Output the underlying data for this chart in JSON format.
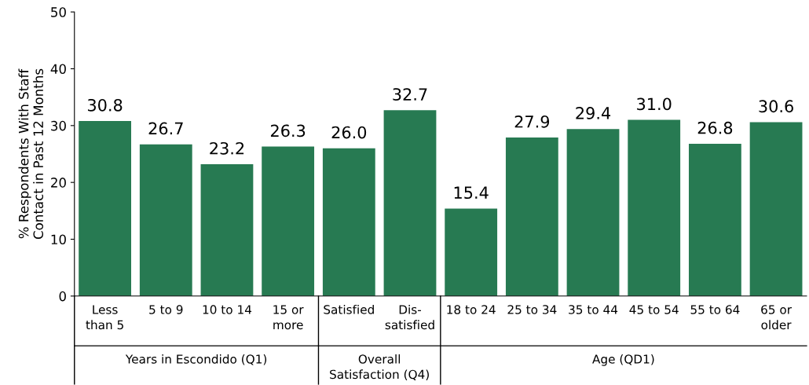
{
  "chart_data": {
    "type": "bar",
    "ylabel": "% Respondents With Staff\nContact in Past 12 Months",
    "categories": [
      "Less\nthan 5",
      "5 to 9",
      "10 to 14",
      "15 or\nmore",
      "Satisfied",
      "Dis-\nsatisfied",
      "18 to 24",
      "25 to 34",
      "35 to 44",
      "45 to 54",
      "55 to 64",
      "65 or\nolder"
    ],
    "values": [
      30.8,
      26.7,
      23.2,
      26.3,
      26.0,
      32.7,
      15.4,
      27.9,
      29.4,
      31.0,
      26.8,
      30.6
    ],
    "color": "#277a52",
    "ylim": [
      0,
      50
    ],
    "yticks": [
      0,
      10,
      20,
      30,
      40,
      50
    ],
    "grid": false,
    "value_labels": [
      "30.8",
      "26.7",
      "23.2",
      "26.3",
      "26.0",
      "32.7",
      "15.4",
      "27.9",
      "29.4",
      "31.0",
      "26.8",
      "30.6"
    ],
    "annotations": [
      "Years in Escondido (Q1)",
      "Overall\nSatisfaction (Q4)",
      "Age (QD1)"
    ]
  }
}
